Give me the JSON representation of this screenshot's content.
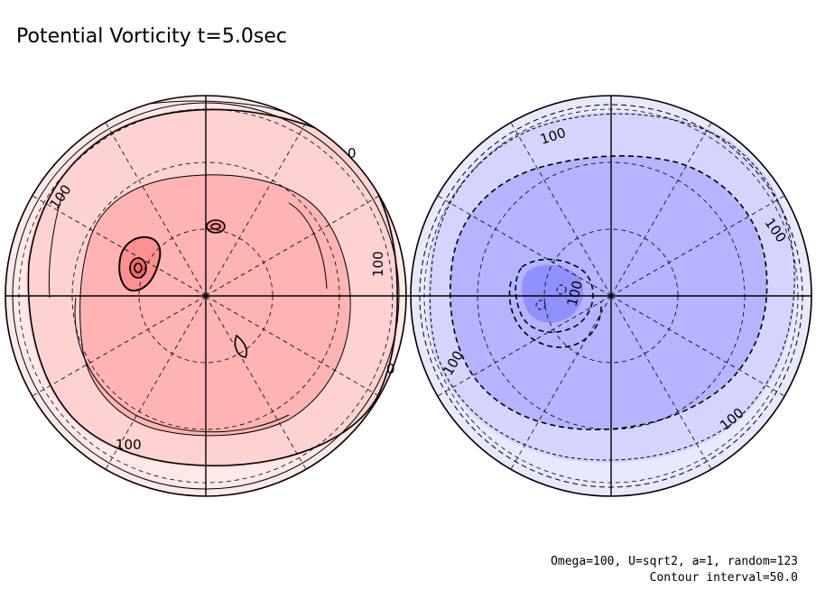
{
  "title": "Potential Vorticity t=5.0sec",
  "params_line": "Omega=100, U=sqrt2, a=1, random=123",
  "contour_interval_line": "Contour interval=50.0",
  "contour_labels": {
    "north": [
      "100",
      "100",
      "100",
      "0",
      "0"
    ],
    "south": [
      "100",
      "100",
      "100",
      "100",
      "100"
    ]
  },
  "colors": {
    "north_outer": "#ffe8e8",
    "north_mid": "#ffd2d2",
    "north_inner": "#ffb4b4",
    "north_core": "#ff9090",
    "north_peak": "#f06868",
    "south_outer": "#e8e8ff",
    "south_mid": "#d4d4ff",
    "south_inner": "#b4b4ff",
    "south_core": "#9090ff",
    "line": "#000000"
  }
}
